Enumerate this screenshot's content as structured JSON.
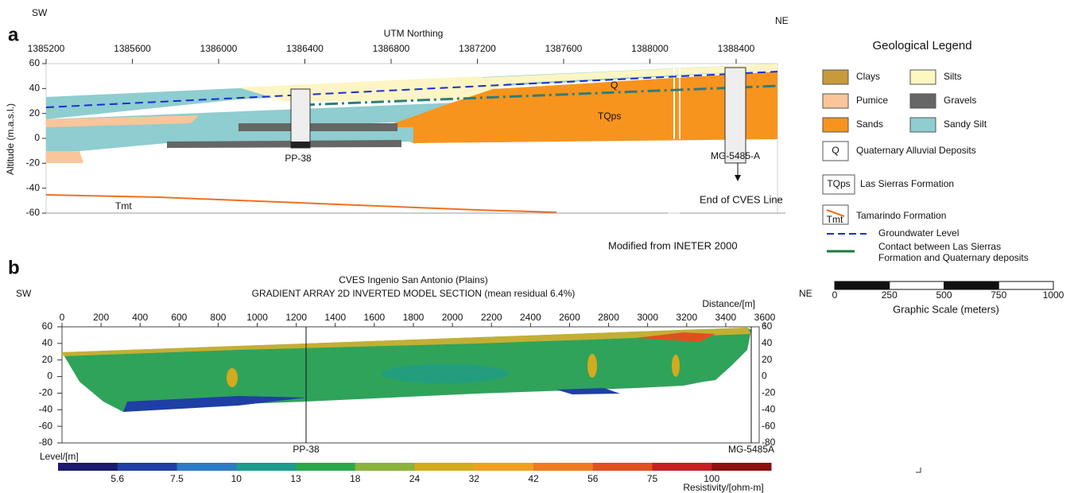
{
  "panel_a": {
    "letter": "a",
    "sw": "SW",
    "ne": "NE",
    "x_axis_title": "UTM Northing",
    "xticks": [
      1385200,
      1385600,
      1386000,
      1386400,
      1386800,
      1387200,
      1387600,
      1388000,
      1388400
    ],
    "y_axis_title": "Altitude (m.a.s.l.)",
    "yticks": [
      60,
      40,
      20,
      0,
      -20,
      -40,
      -60
    ],
    "labels": {
      "q": "Q",
      "tqps": "TQps",
      "tmt": "Tmt",
      "pp38": "PP-38",
      "mg": "MG-5485-A",
      "end": "End of CVES Line"
    },
    "source": "Modified from INETER 2000"
  },
  "legend": {
    "title": "Geological Legend",
    "clays": "Clays",
    "silts": "Silts",
    "pumice": "Pumice",
    "gravels": "Gravels",
    "sands": "Sands",
    "sandy_silt": "Sandy Silt",
    "q_symbol": "Q",
    "q": "Quaternary Alluvial Deposits",
    "tqps_symbol": "TQps",
    "tqps": "Las Sierras Formation",
    "tmt_symbol": "Tmt",
    "tmt": "Tamarindo Formation",
    "groundwater": "Groundwater Level",
    "contact_line1": "Contact between Las Sierras",
    "contact_line2": "Formation and Quaternary deposits"
  },
  "scale": {
    "ticks": [
      0,
      250,
      500,
      750,
      1000
    ],
    "title": "Graphic Scale (meters)"
  },
  "panel_b": {
    "letter": "b",
    "sw": "SW",
    "ne": "NE",
    "title_line1": "CVES Ingenio San Antonio (Plains)",
    "title_line2": "GRADIENT ARRAY 2D INVERTED MODEL SECTION (mean residual 6.4%)",
    "x_axis_title": "Distance/[m]",
    "xticks": [
      0,
      200,
      400,
      600,
      800,
      1000,
      1200,
      1400,
      1600,
      1800,
      2000,
      2200,
      2400,
      2600,
      2800,
      3000,
      3200,
      3400,
      3600
    ],
    "y_axis_title": "Level/[m]",
    "yticks": [
      60,
      40,
      20,
      0,
      -20,
      -40,
      -60,
      -80
    ],
    "pp38": "PP-38",
    "mg": "MG-5485A",
    "colorbar": {
      "labels": [
        5.6,
        7.5,
        10,
        13,
        18,
        24,
        32,
        42,
        56,
        75,
        100
      ],
      "title": "Resistivity/[ohm-m]"
    }
  }
}
